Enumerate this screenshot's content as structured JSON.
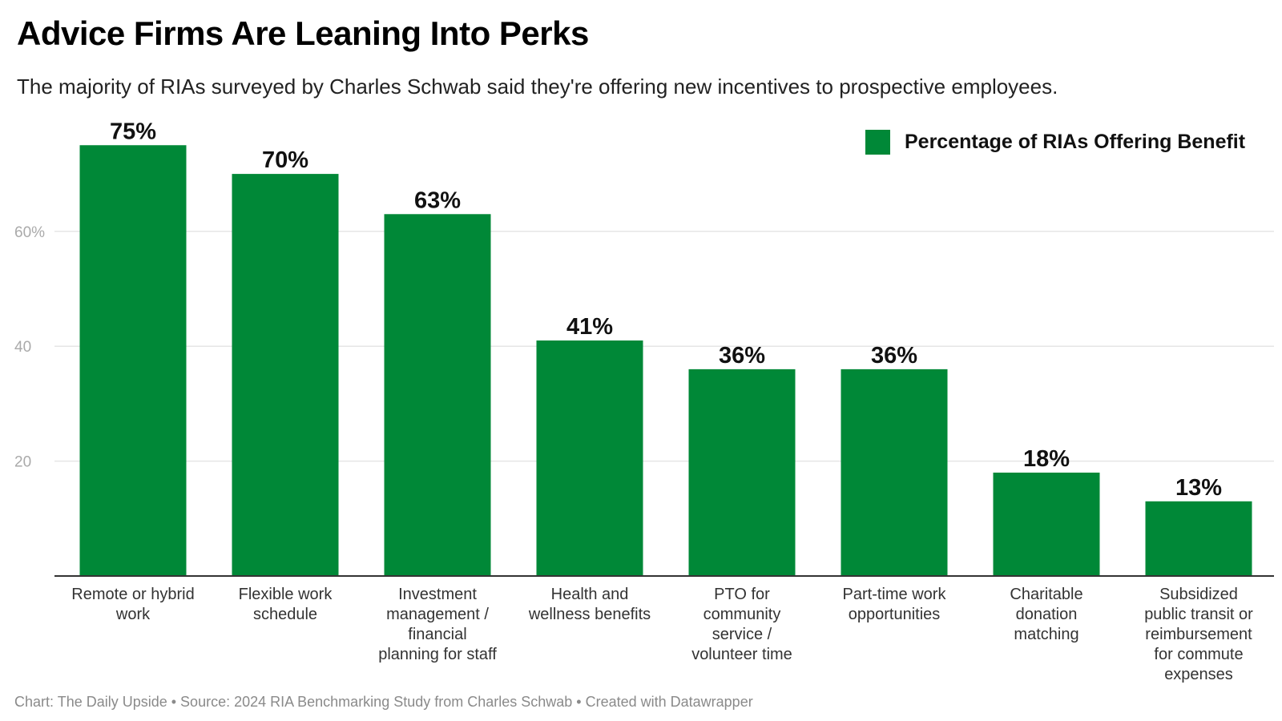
{
  "header": {
    "title": "Advice Firms Are Leaning Into Perks",
    "subtitle": "The majority of RIAs surveyed by Charles Schwab said they're offering new incentives to prospective employees."
  },
  "legend": {
    "label": "Percentage of RIAs Offering Benefit"
  },
  "footer": {
    "text": "Chart: The Daily Upside • Source: 2024 RIA Benchmarking Study from Charles Schwab • Created with Datawrapper"
  },
  "colors": {
    "bar": "#008837",
    "grid": "#e6e6e6",
    "axis": "#333333",
    "tick_label": "#aaaaaa"
  },
  "chart_data": {
    "type": "bar",
    "categories": [
      [
        "Remote or hybrid",
        "work"
      ],
      [
        "Flexible work",
        "schedule"
      ],
      [
        "Investment",
        "management /",
        "financial",
        "planning for staff"
      ],
      [
        "Health and",
        "wellness benefits"
      ],
      [
        "PTO for",
        "community",
        "service /",
        "volunteer time"
      ],
      [
        "Part-time work",
        "opportunities"
      ],
      [
        "Charitable",
        "donation",
        "matching"
      ],
      [
        "Subsidized",
        "public transit or",
        "reimbursement",
        "for commute",
        "expenses"
      ]
    ],
    "series": [
      {
        "name": "Percentage of RIAs Offering Benefit",
        "values": [
          75,
          70,
          63,
          41,
          36,
          36,
          18,
          13
        ],
        "data_labels": [
          "75%",
          "70%",
          "63%",
          "41%",
          "36%",
          "36%",
          "18%",
          "13%"
        ]
      }
    ],
    "yticks": [
      {
        "value": 20,
        "label": "20"
      },
      {
        "value": 40,
        "label": "40"
      },
      {
        "value": 60,
        "label": "60%"
      }
    ],
    "ylim": [
      0,
      75
    ],
    "grid": true,
    "legend_position": "top-right"
  }
}
